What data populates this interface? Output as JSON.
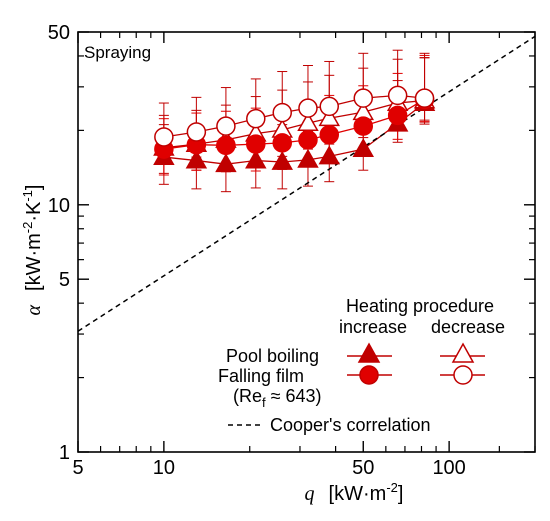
{
  "chart_data": {
    "type": "scatter",
    "title": "",
    "panel_label": "Spraying",
    "xscale": "log",
    "yscale": "log",
    "xlim": [
      5,
      200
    ],
    "ylim": [
      1,
      50
    ],
    "xlabel": {
      "symbol": "q",
      "unit_base": "[kW·m",
      "unit_sup": "-2",
      "unit_close": "]"
    },
    "ylabel": {
      "symbol": "α",
      "unit_base": "[kW·m",
      "unit_sup1": "-2",
      "unit_mid": "·K",
      "unit_sup2": "-1",
      "unit_close": "]"
    },
    "xticks": [
      {
        "value": 5,
        "label": "5"
      },
      {
        "value": 10,
        "label": "10"
      },
      {
        "value": 50,
        "label": "50"
      },
      {
        "value": 100,
        "label": "100"
      }
    ],
    "yticks": [
      {
        "value": 1,
        "label": "1"
      },
      {
        "value": 5,
        "label": "5"
      },
      {
        "value": 10,
        "label": "10"
      },
      {
        "value": 50,
        "label": "50"
      }
    ],
    "series": [
      {
        "name": "Pool boiling · increase",
        "marker": "triangle",
        "filled": true,
        "color": "#c00000",
        "x": [
          10,
          13,
          16.5,
          21,
          26,
          32,
          38,
          50,
          66,
          82
        ],
        "y": [
          15.6,
          15.1,
          14.6,
          15.1,
          14.9,
          15.2,
          15.7,
          16.8,
          21.3,
          25.8
        ],
        "err_up": [
          5.5,
          5.5,
          5.4,
          5.8,
          6.2,
          6.6,
          7.6,
          9.0,
          10.5,
          13.5
        ],
        "err_down": [
          3.5,
          3.5,
          3.3,
          3.4,
          3.3,
          3.3,
          3.3,
          3.0,
          3.4,
          4.2
        ]
      },
      {
        "name": "Pool boiling · decrease",
        "marker": "triangle",
        "filled": false,
        "color": "#c00000",
        "x": [
          10,
          13,
          16.5,
          21,
          26,
          32,
          38,
          50,
          66,
          82
        ],
        "y": [
          17.0,
          17.6,
          18.3,
          19.4,
          20.1,
          21.4,
          22.4,
          23.7,
          25.8,
          26.4
        ],
        "err_up": [
          6.0,
          6.5,
          7.0,
          8.0,
          9.0,
          10.0,
          11.0,
          12.0,
          13.0,
          13.0
        ],
        "err_down": [
          3.6,
          3.8,
          4.0,
          4.2,
          4.4,
          4.6,
          4.8,
          5.0,
          5.2,
          5.2
        ]
      },
      {
        "name": "Falling film (Ref ≈ 643) · increase",
        "marker": "circle",
        "filled": true,
        "color": "#e00000",
        "x": [
          10,
          13,
          16.5,
          21,
          26,
          32,
          38,
          50,
          66,
          82
        ],
        "y": [
          16.8,
          17.5,
          17.4,
          17.6,
          17.8,
          18.3,
          19.2,
          20.8,
          23.0,
          26.7
        ],
        "err_up": [
          5.5,
          6.0,
          6.5,
          7.0,
          7.5,
          8.0,
          8.5,
          9.5,
          11.0,
          13.5
        ],
        "err_down": [
          3.6,
          3.7,
          3.8,
          3.9,
          3.9,
          4.0,
          4.1,
          4.3,
          4.6,
          5.0
        ]
      },
      {
        "name": "Falling film (Ref ≈ 643) · decrease",
        "marker": "circle",
        "filled": false,
        "color": "#c00000",
        "x": [
          10,
          13,
          16.5,
          21,
          26,
          32,
          38,
          50,
          66,
          82
        ],
        "y": [
          18.8,
          19.7,
          20.8,
          22.3,
          23.6,
          24.6,
          25.0,
          27.0,
          27.7,
          27.0
        ],
        "err_up": [
          7.0,
          7.5,
          9.0,
          10.0,
          11.0,
          12.0,
          13.0,
          14.0,
          14.5,
          14.0
        ],
        "err_down": [
          4.0,
          4.1,
          4.2,
          4.4,
          4.6,
          4.8,
          4.9,
          5.0,
          5.1,
          5.0
        ]
      },
      {
        "name": "Cooper's correlation",
        "marker": "dashed-line",
        "color": "#000000",
        "x": [
          5,
          200
        ],
        "y": [
          3.08,
          48.0
        ]
      }
    ],
    "legend": {
      "placement": "bottom-right",
      "header": "Heating procedure",
      "col_increase": "increase",
      "col_decrease": "decrease",
      "row_pool": "Pool boiling",
      "row_film": "Falling film",
      "row_film_sub": {
        "open": "(Re",
        "sub": "f",
        "close": " ≈ 643)"
      },
      "cooper": "Cooper's correlation"
    }
  }
}
